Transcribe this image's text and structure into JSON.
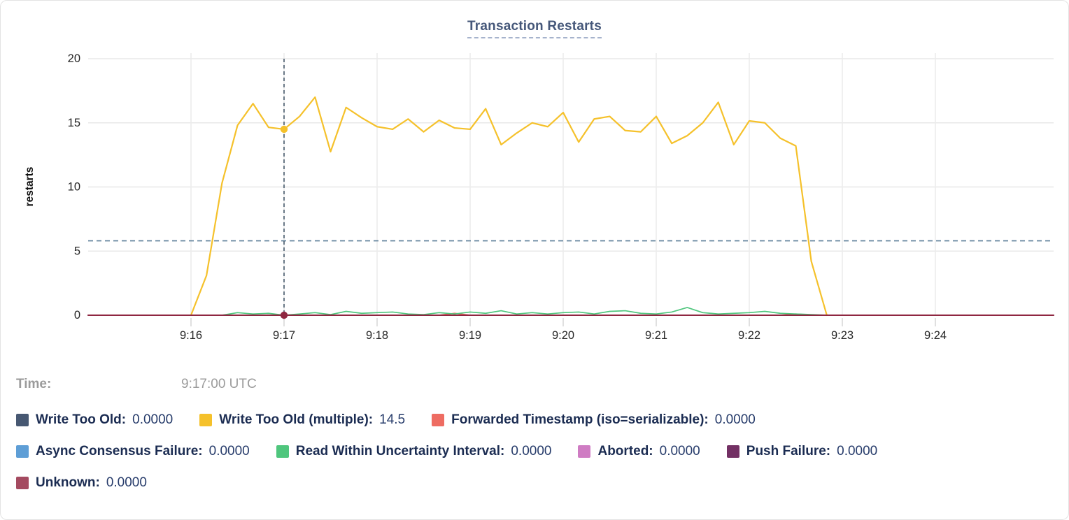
{
  "card": {
    "title": "Transaction Restarts"
  },
  "tooltip": {
    "time_label": "Time:",
    "time_value": "9:17:00 UTC",
    "legend": [
      {
        "label": "Write Too Old:",
        "value": "0.0000",
        "color": "#475872"
      },
      {
        "label": "Write Too Old (multiple):",
        "value": "14.5",
        "color": "#f5c12b"
      },
      {
        "label": "Forwarded Timestamp (iso=serializable):",
        "value": "0.0000",
        "color": "#ee6c62"
      },
      {
        "label": "Async Consensus Failure:",
        "value": "0.0000",
        "color": "#5e9ed6"
      },
      {
        "label": "Read Within Uncertainty Interval:",
        "value": "0.0000",
        "color": "#4fc67d"
      },
      {
        "label": "Aborted:",
        "value": "0.0000",
        "color": "#cf7cc3"
      },
      {
        "label": "Push Failure:",
        "value": "0.0000",
        "color": "#733064"
      },
      {
        "label": "Unknown:",
        "value": "0.0000",
        "color": "#a44a60"
      }
    ]
  },
  "chart_data": {
    "type": "line",
    "title": "Transaction Restarts",
    "xlabel": "",
    "ylabel": "restarts",
    "ylim": [
      0,
      20
    ],
    "y_ticks": [
      0,
      5,
      10,
      15,
      20
    ],
    "x_ticks": [
      "9:16",
      "9:17",
      "9:18",
      "9:19",
      "9:20",
      "9:21",
      "9:22",
      "9:23",
      "9:24"
    ],
    "grid": true,
    "legend_position": "bottom",
    "series_start": "9:16:00",
    "sample_interval_seconds": 10,
    "threshold_dashed_y": 5.8,
    "threshold_color": "#5d7f99",
    "crosshair_time": "9:17:00",
    "crosshair_color": "#46596b",
    "crosshair_points": [
      {
        "series": "Write Too Old (multiple)",
        "value": 14.5,
        "color": "#f5c12b"
      },
      {
        "series": "Unknown",
        "value": 0,
        "color": "#8f2741"
      }
    ],
    "series": [
      {
        "name": "Write Too Old",
        "color": "#475872",
        "constant": 0
      },
      {
        "name": "Write Too Old (multiple)",
        "color": "#f5c12b",
        "values": [
          0,
          3.1,
          10.3,
          14.8,
          16.5,
          14.65,
          14.5,
          15.5,
          17.0,
          12.75,
          16.2,
          15.4,
          14.7,
          14.5,
          15.3,
          14.3,
          15.2,
          14.6,
          14.5,
          16.1,
          13.3,
          14.2,
          15.0,
          14.7,
          15.8,
          13.5,
          15.3,
          15.5,
          14.4,
          14.3,
          15.5,
          13.4,
          14.0,
          15.0,
          16.6,
          13.3,
          15.15,
          15.0,
          13.8,
          13.2,
          4.2,
          0
        ]
      },
      {
        "name": "Forwarded Timestamp (iso=serializable)",
        "color": "#ee6c62",
        "values": [
          0,
          0,
          0,
          0,
          0,
          0,
          0,
          0,
          0,
          0,
          0,
          0,
          0,
          0,
          0,
          0,
          0,
          0.15,
          0,
          0,
          0,
          0,
          0,
          0,
          0,
          0,
          0,
          0,
          0,
          0,
          0,
          0,
          0,
          0,
          0,
          0,
          0,
          0,
          0,
          0.1,
          0,
          0
        ]
      },
      {
        "name": "Async Consensus Failure",
        "color": "#5e9ed6",
        "constant": 0
      },
      {
        "name": "Read Within Uncertainty Interval",
        "color": "#4fc67d",
        "values": [
          0,
          0,
          0,
          0.2,
          0.1,
          0.15,
          0,
          0.1,
          0.2,
          0.05,
          0.3,
          0.15,
          0.2,
          0.25,
          0.1,
          0.05,
          0.2,
          0.1,
          0.25,
          0.15,
          0.35,
          0.1,
          0.2,
          0.1,
          0.2,
          0.25,
          0.1,
          0.3,
          0.35,
          0.15,
          0.1,
          0.25,
          0.6,
          0.2,
          0.1,
          0.15,
          0.2,
          0.3,
          0.15,
          0.1,
          0.05,
          0
        ]
      },
      {
        "name": "Aborted",
        "color": "#cf7cc3",
        "constant": 0
      },
      {
        "name": "Push Failure",
        "color": "#733064",
        "constant": 0
      },
      {
        "name": "Unknown",
        "color": "#8f2741",
        "constant": 0
      }
    ]
  }
}
